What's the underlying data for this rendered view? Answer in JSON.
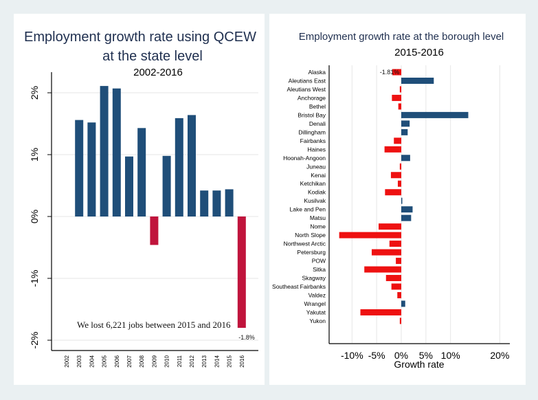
{
  "chart_data": [
    {
      "type": "bar",
      "title": "Employment growth rate using QCEW",
      "title_line2": "at the state level",
      "subtitle": "2002-2016",
      "categories": [
        "2002",
        "2003",
        "2004",
        "2005",
        "2006",
        "2007",
        "2008",
        "2009",
        "2010",
        "2011",
        "2012",
        "2013",
        "2014",
        "2015",
        "2016"
      ],
      "values": [
        null,
        1.56,
        1.52,
        2.11,
        2.07,
        0.97,
        1.43,
        -0.46,
        0.98,
        1.59,
        1.64,
        0.42,
        0.42,
        0.44,
        -1.8
      ],
      "yticks": [
        {
          "v": 2,
          "label": "2%"
        },
        {
          "v": 1,
          "label": "1%"
        },
        {
          "v": 0,
          "label": "0%"
        },
        {
          "v": -1,
          "label": "-1%"
        },
        {
          "v": -2,
          "label": "-2%"
        }
      ],
      "ylim": [
        -2.2,
        2.3
      ],
      "data_label": "-1.8%",
      "annotation": "We lost  6,221 jobs between  2015 and 2016",
      "colors": {
        "positive": "#1f4e79",
        "negative": "#c0143c"
      },
      "grid": true
    },
    {
      "type": "bar",
      "orientation": "horizontal",
      "title": "Employment growth rate at the borough level",
      "subtitle": "2015-2016",
      "xlabel": "Growth rate",
      "categories": [
        "Alaska",
        "Aleutians East",
        "Aleutians West",
        "Anchorage",
        "Bethel",
        "Bristol Bay",
        "Denali",
        "Dillingham",
        "Fairbanks",
        "Haines",
        "Hoonah-Angoon",
        "Juneau",
        "Kenai",
        "Ketchikan",
        "Kodiak",
        "Kusilvak",
        "Lake and Pen",
        "Matsu",
        "Nome",
        "North Slope",
        "Northwest Arctic",
        "Petersburg",
        "POW",
        "Sitka",
        "Skagway",
        "Southeast Fairbanks",
        "Valdez",
        "Wrangel",
        "Yakutat",
        "Yukon"
      ],
      "values": [
        -1.81,
        6.6,
        -0.3,
        -1.9,
        -0.6,
        13.6,
        1.7,
        1.3,
        -1.5,
        -3.4,
        1.8,
        -0.3,
        -2.1,
        -0.7,
        -3.3,
        0.2,
        2.3,
        2.0,
        -4.6,
        -12.6,
        -2.4,
        -6.0,
        -1.1,
        -7.5,
        -3.1,
        -2.0,
        -0.8,
        0.8,
        -8.3,
        -0.3
      ],
      "data_label": "-1.81%",
      "xticks": [
        {
          "v": -10,
          "label": "-10%"
        },
        {
          "v": -5,
          "label": "-5%"
        },
        {
          "v": 0,
          "label": "0%"
        },
        {
          "v": 5,
          "label": "5%"
        },
        {
          "v": 10,
          "label": "10%"
        },
        {
          "v": 20,
          "label": "20%"
        }
      ],
      "xlim": [
        -14,
        22
      ],
      "colors": {
        "positive": "#1f4e79",
        "negative": "#ee1111"
      },
      "grid": true
    }
  ]
}
